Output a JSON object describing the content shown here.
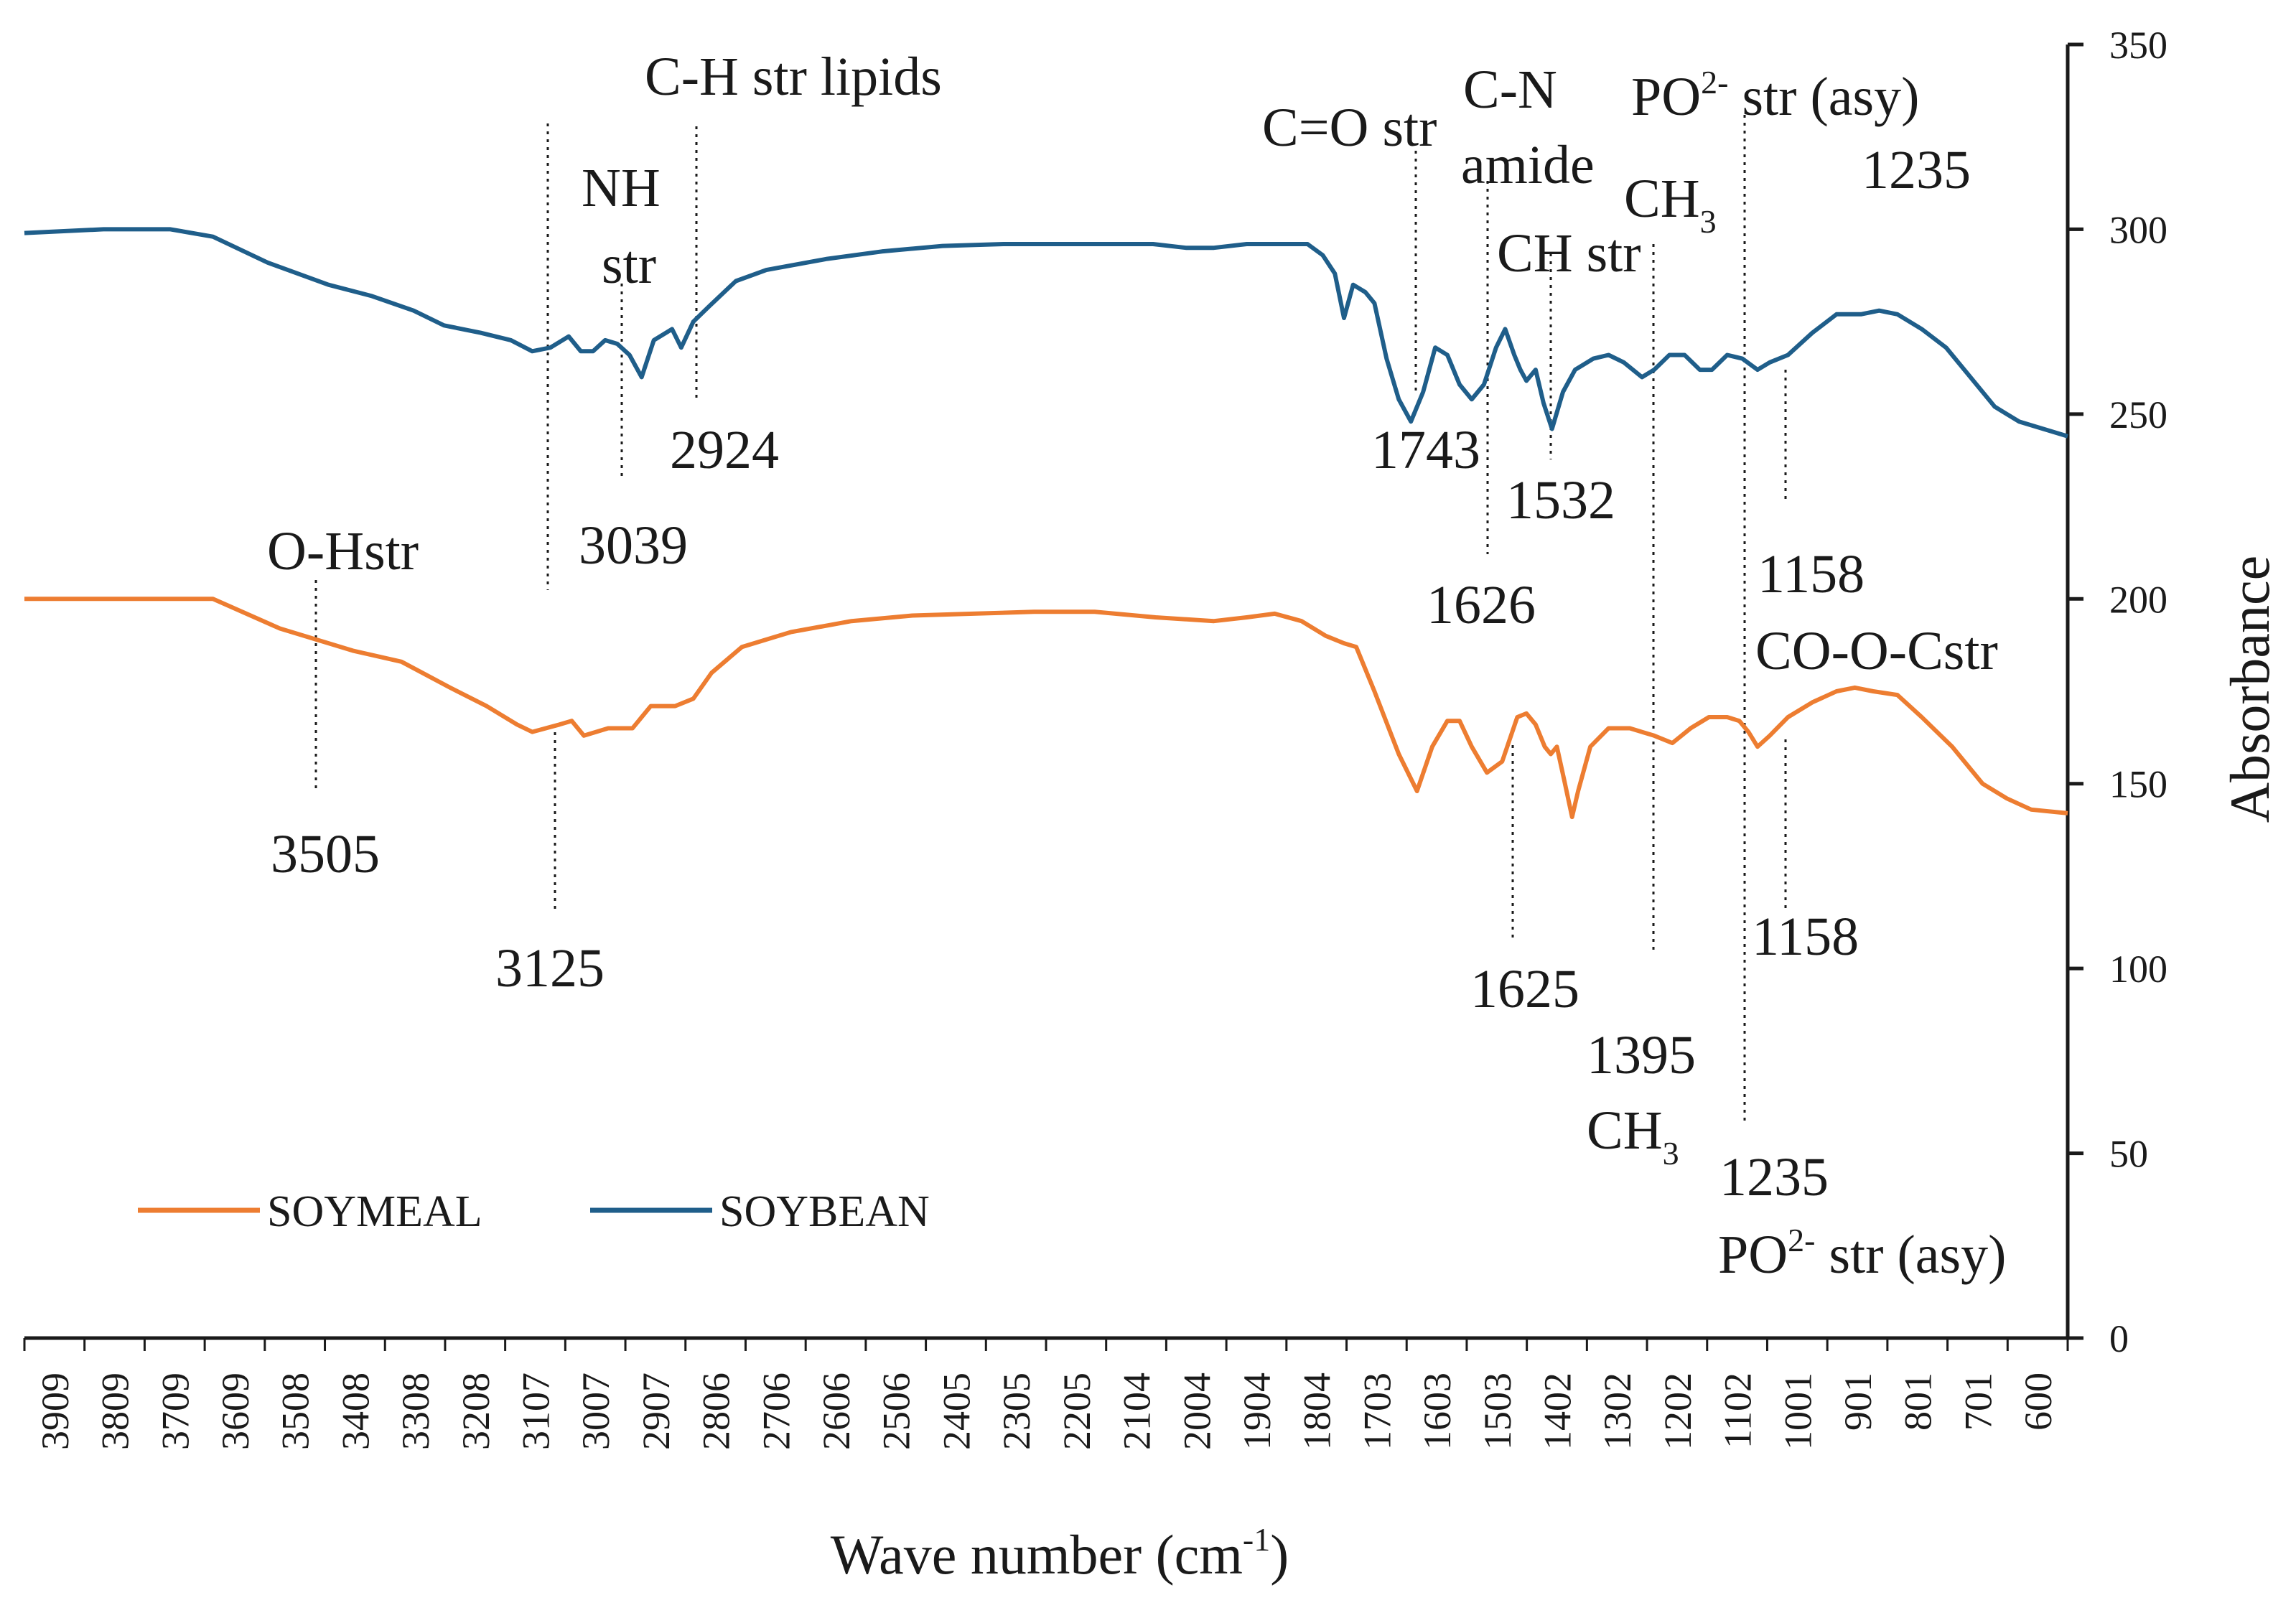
{
  "chart_data": {
    "type": "line",
    "title": "",
    "xlabel": "Wave number (cm",
    "xlabel_sup": "-1",
    "xlabel_tail": ")",
    "ylabel": "Absorbance",
    "xlim": [
      3960,
      600
    ],
    "ylim": [
      0,
      350
    ],
    "y_axis_side": "right",
    "x_tick_labels": [
      "3909",
      "3809",
      "3709",
      "3609",
      "3508",
      "3408",
      "3308",
      "3208",
      "3107",
      "3007",
      "2907",
      "2806",
      "2706",
      "2606",
      "2506",
      "2405",
      "2305",
      "2205",
      "2104",
      "2004",
      "1904",
      "1804",
      "1703",
      "1603",
      "1503",
      "1402",
      "1302",
      "1202",
      "1102",
      "1001",
      "901",
      "801",
      "701",
      "600"
    ],
    "y_ticks": [
      0,
      50,
      100,
      150,
      200,
      250,
      300,
      350
    ],
    "legend_position": "bottom-left",
    "series": [
      {
        "name": "SOYMEAL",
        "color": "#ED7D31",
        "points": [
          [
            3960,
            200
          ],
          [
            3650,
            200
          ],
          [
            3540,
            192
          ],
          [
            3420,
            186
          ],
          [
            3340,
            183
          ],
          [
            3260,
            176
          ],
          [
            3200,
            171
          ],
          [
            3150,
            166
          ],
          [
            3125,
            164
          ],
          [
            3080,
            166
          ],
          [
            3060,
            167
          ],
          [
            3040,
            163
          ],
          [
            3000,
            165
          ],
          [
            2960,
            165
          ],
          [
            2930,
            171
          ],
          [
            2890,
            171
          ],
          [
            2860,
            173
          ],
          [
            2830,
            180
          ],
          [
            2780,
            187
          ],
          [
            2700,
            191
          ],
          [
            2600,
            194
          ],
          [
            2500,
            195.5
          ],
          [
            2400,
            196
          ],
          [
            2300,
            196.5
          ],
          [
            2200,
            196.5
          ],
          [
            2100,
            195
          ],
          [
            2004,
            194
          ],
          [
            1950,
            195
          ],
          [
            1904,
            196
          ],
          [
            1860,
            194
          ],
          [
            1820,
            190
          ],
          [
            1790,
            188
          ],
          [
            1770,
            187
          ],
          [
            1740,
            175
          ],
          [
            1700,
            158
          ],
          [
            1670,
            148
          ],
          [
            1645,
            160
          ],
          [
            1620,
            167
          ],
          [
            1600,
            167
          ],
          [
            1580,
            160
          ],
          [
            1555,
            153
          ],
          [
            1530,
            156
          ],
          [
            1505,
            168
          ],
          [
            1490,
            169
          ],
          [
            1475,
            166
          ],
          [
            1460,
            160
          ],
          [
            1450,
            158
          ],
          [
            1440,
            160
          ],
          [
            1428,
            151
          ],
          [
            1415,
            141
          ],
          [
            1405,
            148
          ],
          [
            1385,
            160
          ],
          [
            1355,
            165
          ],
          [
            1320,
            165
          ],
          [
            1280,
            163
          ],
          [
            1250,
            161
          ],
          [
            1220,
            165
          ],
          [
            1190,
            168
          ],
          [
            1160,
            168
          ],
          [
            1140,
            167
          ],
          [
            1125,
            164
          ],
          [
            1110,
            160
          ],
          [
            1090,
            163
          ],
          [
            1060,
            168
          ],
          [
            1020,
            172
          ],
          [
            980,
            175
          ],
          [
            950,
            176
          ],
          [
            920,
            175
          ],
          [
            880,
            174
          ],
          [
            840,
            168
          ],
          [
            790,
            160
          ],
          [
            740,
            150
          ],
          [
            700,
            146
          ],
          [
            660,
            143
          ],
          [
            600,
            142
          ]
        ]
      },
      {
        "name": "SOYBEAN",
        "color": "#1F5E8A",
        "points": [
          [
            3960,
            299
          ],
          [
            3830,
            300
          ],
          [
            3720,
            300
          ],
          [
            3650,
            298
          ],
          [
            3560,
            291
          ],
          [
            3460,
            285
          ],
          [
            3390,
            282
          ],
          [
            3320,
            278
          ],
          [
            3270,
            274
          ],
          [
            3210,
            272
          ],
          [
            3160,
            270
          ],
          [
            3125,
            267
          ],
          [
            3095,
            268
          ],
          [
            3065,
            271
          ],
          [
            3045,
            267
          ],
          [
            3025,
            267
          ],
          [
            3005,
            270
          ],
          [
            2985,
            269
          ],
          [
            2965,
            266
          ],
          [
            2945,
            260
          ],
          [
            2925,
            270
          ],
          [
            2895,
            273
          ],
          [
            2880,
            268
          ],
          [
            2860,
            275
          ],
          [
            2835,
            279
          ],
          [
            2790,
            286
          ],
          [
            2740,
            289
          ],
          [
            2640,
            292
          ],
          [
            2550,
            294
          ],
          [
            2450,
            295.5
          ],
          [
            2350,
            296
          ],
          [
            2250,
            296
          ],
          [
            2150,
            296
          ],
          [
            2104,
            296
          ],
          [
            2050,
            295
          ],
          [
            2004,
            295
          ],
          [
            1950,
            296
          ],
          [
            1850,
            296
          ],
          [
            1825,
            293
          ],
          [
            1805,
            288
          ],
          [
            1790,
            276
          ],
          [
            1775,
            285
          ],
          [
            1755,
            283
          ],
          [
            1740,
            280
          ],
          [
            1720,
            265
          ],
          [
            1700,
            254
          ],
          [
            1680,
            248
          ],
          [
            1660,
            256
          ],
          [
            1640,
            268
          ],
          [
            1620,
            266
          ],
          [
            1600,
            258
          ],
          [
            1580,
            254
          ],
          [
            1560,
            258
          ],
          [
            1540,
            268
          ],
          [
            1525,
            273
          ],
          [
            1510,
            266
          ],
          [
            1500,
            262
          ],
          [
            1490,
            259
          ],
          [
            1475,
            262
          ],
          [
            1462,
            253
          ],
          [
            1448,
            246
          ],
          [
            1430,
            256
          ],
          [
            1410,
            262
          ],
          [
            1380,
            265
          ],
          [
            1355,
            266
          ],
          [
            1330,
            264
          ],
          [
            1300,
            260
          ],
          [
            1280,
            262
          ],
          [
            1255,
            266
          ],
          [
            1230,
            266
          ],
          [
            1205,
            262
          ],
          [
            1185,
            262
          ],
          [
            1160,
            266
          ],
          [
            1135,
            265
          ],
          [
            1110,
            262
          ],
          [
            1090,
            264
          ],
          [
            1060,
            266
          ],
          [
            1020,
            272
          ],
          [
            980,
            277
          ],
          [
            940,
            277
          ],
          [
            910,
            278
          ],
          [
            880,
            277
          ],
          [
            840,
            273
          ],
          [
            800,
            268
          ],
          [
            760,
            260
          ],
          [
            720,
            252
          ],
          [
            680,
            248
          ],
          [
            600,
            244
          ]
        ]
      }
    ],
    "annotations": [
      {
        "lines": [
          "C-H str lipids"
        ]
      },
      {
        "lines": [
          "NH",
          "str"
        ]
      },
      {
        "lines": [
          "2924"
        ]
      },
      {
        "lines": [
          "3039"
        ]
      },
      {
        "lines": [
          "O-Hstr"
        ]
      },
      {
        "lines": [
          "3505"
        ]
      },
      {
        "lines": [
          "3125"
        ]
      },
      {
        "lines": [
          "C=O str"
        ]
      },
      {
        "lines": [
          "C-N"
        ]
      },
      {
        "lines": [
          "amide"
        ]
      },
      {
        "lines": [
          "CH str"
        ]
      },
      {
        "lines": [
          "CH",
          "3"
        ]
      },
      {
        "lines": [
          "PO",
          "2-",
          " str (asy)"
        ]
      },
      {
        "lines": [
          "1235"
        ]
      },
      {
        "lines": [
          "1743"
        ]
      },
      {
        "lines": [
          "1532"
        ]
      },
      {
        "lines": [
          "1626"
        ]
      },
      {
        "lines": [
          "1158"
        ]
      },
      {
        "lines": [
          "CO-O-Cstr"
        ]
      },
      {
        "lines": [
          "1158"
        ]
      },
      {
        "lines": [
          "1625"
        ]
      },
      {
        "lines": [
          "1395"
        ]
      },
      {
        "lines": [
          "CH",
          "3"
        ]
      },
      {
        "lines": [
          "1235"
        ]
      },
      {
        "lines": [
          "PO",
          "2-",
          " str (asy)"
        ]
      }
    ]
  }
}
